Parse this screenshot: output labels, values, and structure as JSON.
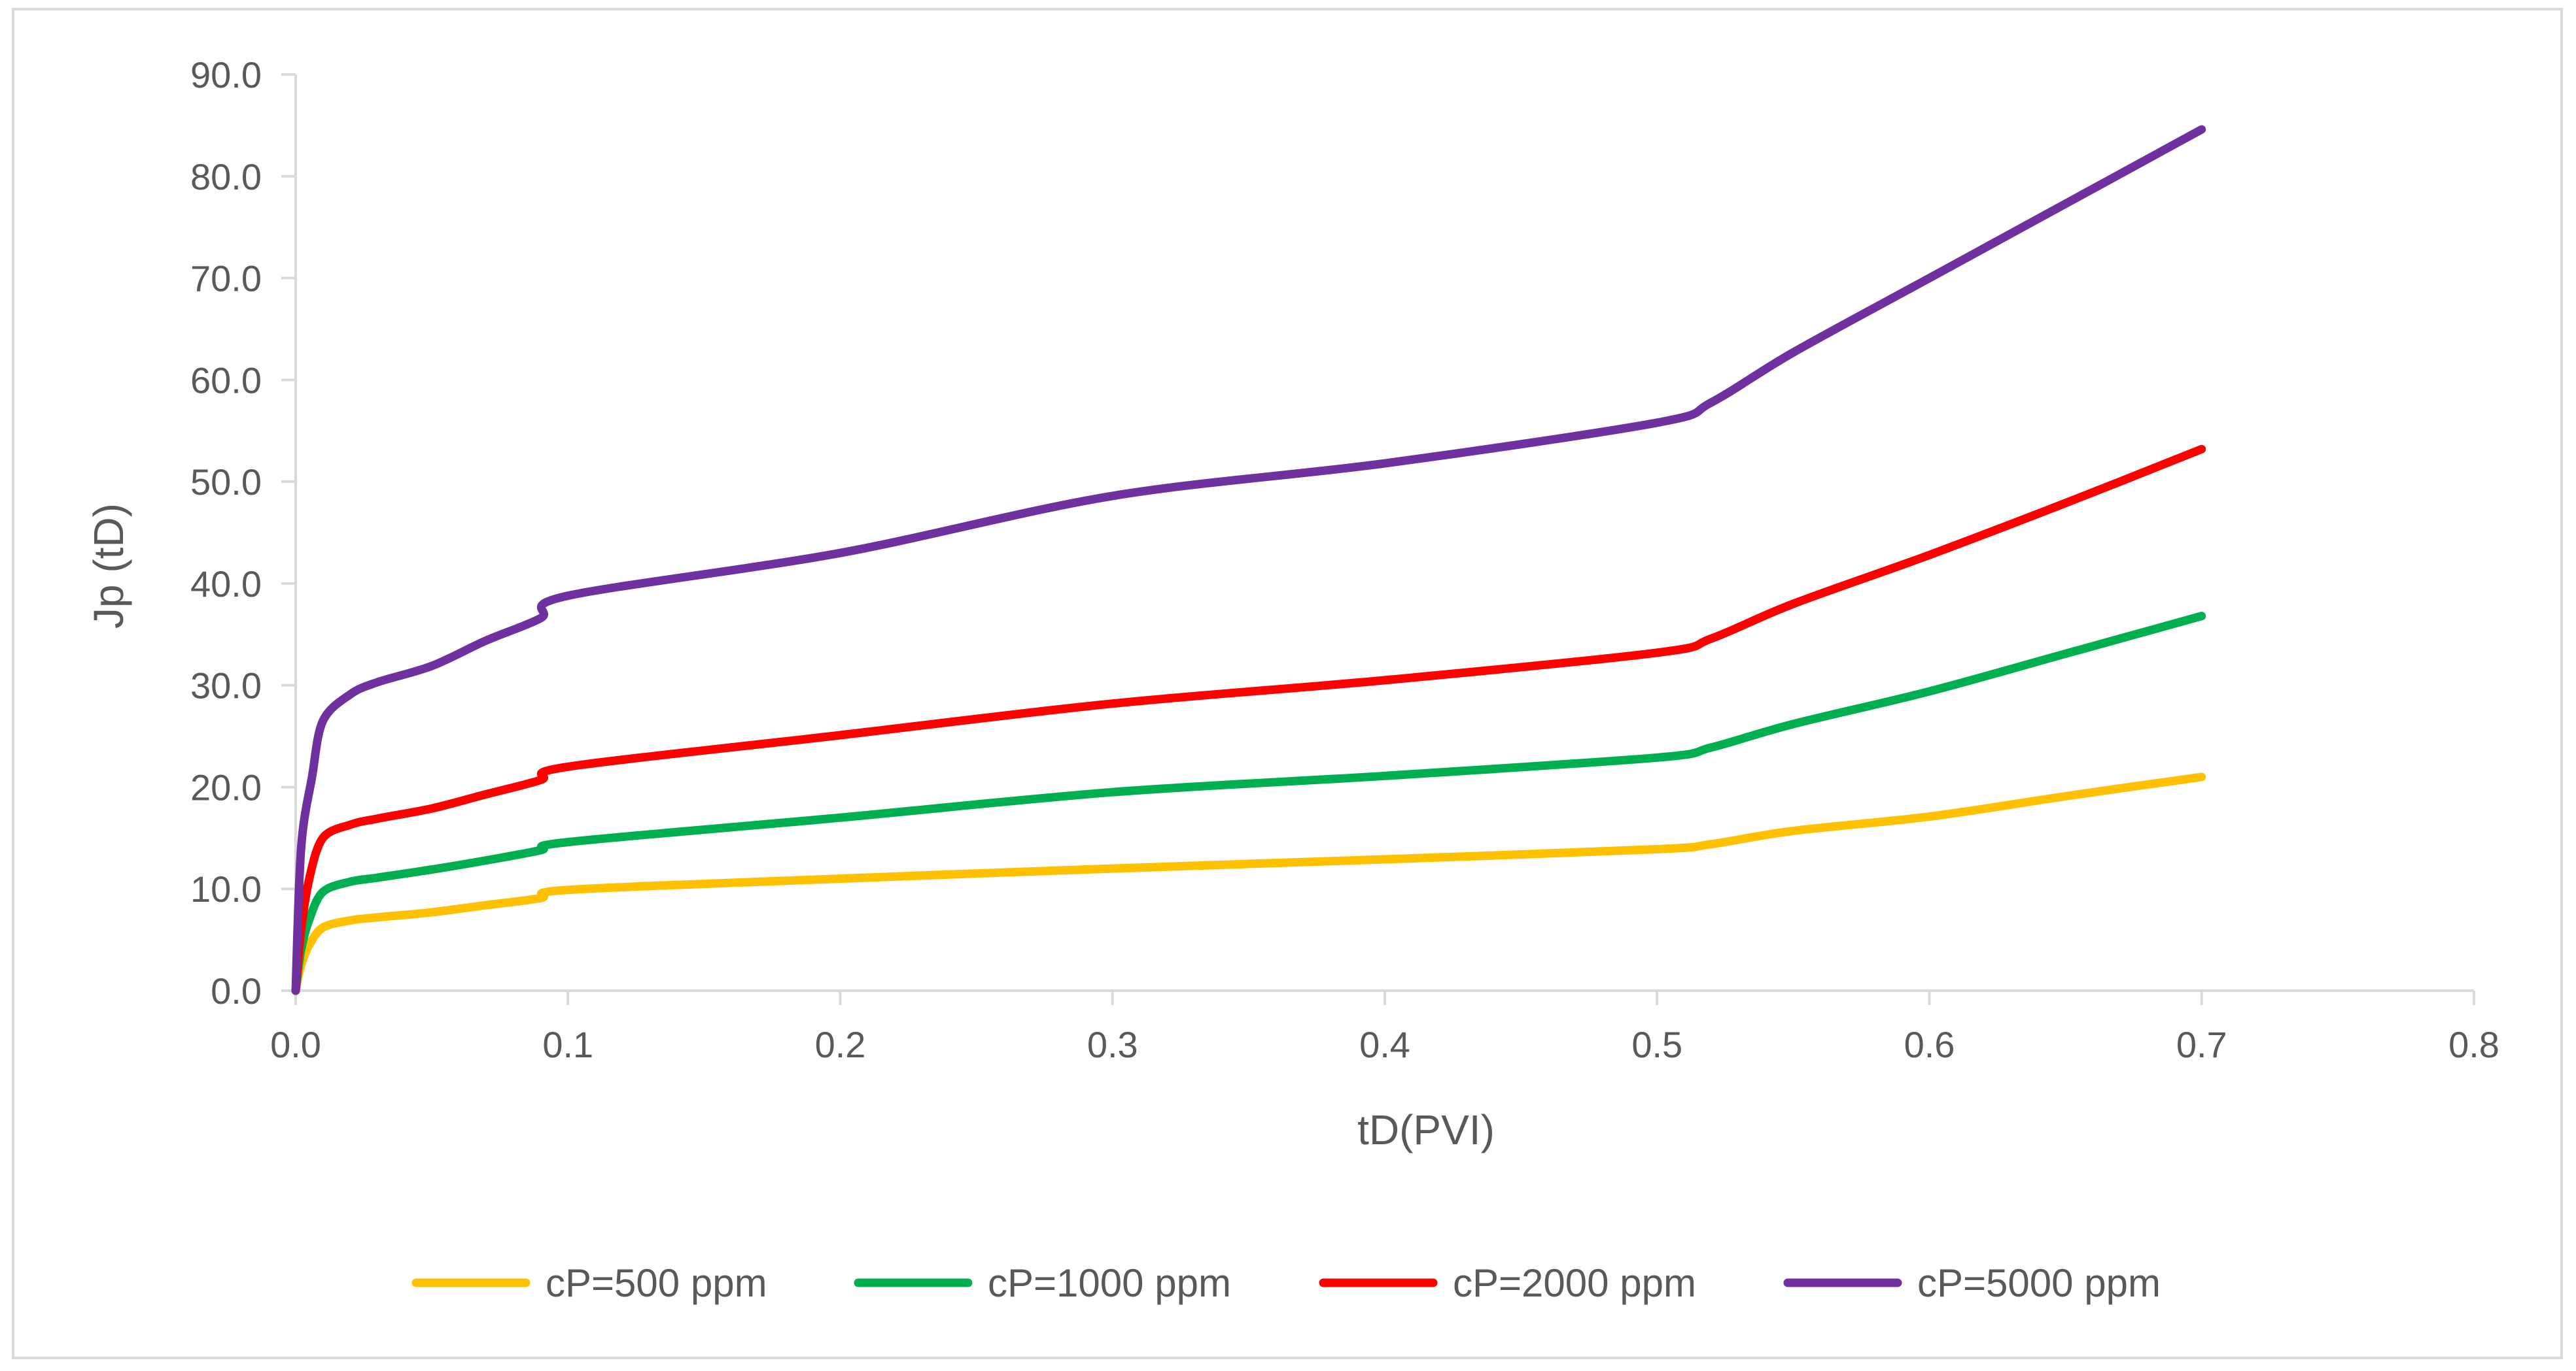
{
  "chart_data": {
    "type": "line",
    "title": "",
    "xlabel": "tD(PVI)",
    "ylabel": "Jp (tD)",
    "xlim": [
      0,
      0.8
    ],
    "ylim": [
      0,
      90
    ],
    "x_ticks": [
      "0.0",
      "0.1",
      "0.2",
      "0.3",
      "0.4",
      "0.5",
      "0.6",
      "0.7",
      "0.8"
    ],
    "y_ticks": [
      "0.0",
      "10.0",
      "20.0",
      "30.0",
      "40.0",
      "50.0",
      "60.0",
      "70.0",
      "80.0",
      "90.0"
    ],
    "grid": false,
    "legend_position": "bottom",
    "series": [
      {
        "name": "cP=500 ppm",
        "color": "#FFC000",
        "points": [
          [
            0,
            0
          ],
          [
            0.002,
            2.5
          ],
          [
            0.005,
            4.5
          ],
          [
            0.01,
            6.2
          ],
          [
            0.02,
            6.9
          ],
          [
            0.03,
            7.2
          ],
          [
            0.05,
            7.7
          ],
          [
            0.07,
            8.4
          ],
          [
            0.09,
            9.1
          ],
          [
            0.1,
            9.9
          ],
          [
            0.2,
            11.0
          ],
          [
            0.3,
            12.0
          ],
          [
            0.4,
            12.9
          ],
          [
            0.5,
            13.9
          ],
          [
            0.52,
            14.4
          ],
          [
            0.55,
            15.7
          ],
          [
            0.6,
            17.1
          ],
          [
            0.65,
            19.1
          ],
          [
            0.7,
            21.0
          ]
        ]
      },
      {
        "name": "cP=1000 ppm",
        "color": "#00B050",
        "points": [
          [
            0,
            0
          ],
          [
            0.002,
            4.0
          ],
          [
            0.005,
            7.0
          ],
          [
            0.01,
            9.7
          ],
          [
            0.02,
            10.7
          ],
          [
            0.03,
            11.1
          ],
          [
            0.05,
            11.9
          ],
          [
            0.07,
            12.8
          ],
          [
            0.09,
            13.8
          ],
          [
            0.1,
            14.6
          ],
          [
            0.2,
            17.0
          ],
          [
            0.3,
            19.5
          ],
          [
            0.4,
            21.1
          ],
          [
            0.5,
            22.9
          ],
          [
            0.52,
            23.9
          ],
          [
            0.55,
            26.2
          ],
          [
            0.6,
            29.4
          ],
          [
            0.65,
            33.1
          ],
          [
            0.7,
            36.8
          ]
        ]
      },
      {
        "name": "cP=2000 ppm",
        "color": "#FF0000",
        "points": [
          [
            0,
            0
          ],
          [
            0.002,
            6.0
          ],
          [
            0.005,
            11.0
          ],
          [
            0.01,
            15.0
          ],
          [
            0.02,
            16.3
          ],
          [
            0.03,
            16.9
          ],
          [
            0.05,
            17.9
          ],
          [
            0.07,
            19.3
          ],
          [
            0.09,
            20.7
          ],
          [
            0.1,
            22.0
          ],
          [
            0.2,
            25.1
          ],
          [
            0.3,
            28.2
          ],
          [
            0.4,
            30.5
          ],
          [
            0.5,
            33.2
          ],
          [
            0.52,
            34.6
          ],
          [
            0.55,
            38.0
          ],
          [
            0.6,
            42.8
          ],
          [
            0.65,
            47.9
          ],
          [
            0.7,
            53.2
          ]
        ]
      },
      {
        "name": "cP=5000 ppm",
        "color": "#7030A0",
        "points": [
          [
            0,
            0
          ],
          [
            0.002,
            14.0
          ],
          [
            0.006,
            21.0
          ],
          [
            0.01,
            26.5
          ],
          [
            0.02,
            29.1
          ],
          [
            0.03,
            30.3
          ],
          [
            0.05,
            31.9
          ],
          [
            0.07,
            34.4
          ],
          [
            0.09,
            36.6
          ],
          [
            0.1,
            38.8
          ],
          [
            0.2,
            43.0
          ],
          [
            0.3,
            48.6
          ],
          [
            0.4,
            51.8
          ],
          [
            0.5,
            55.8
          ],
          [
            0.52,
            57.8
          ],
          [
            0.55,
            62.7
          ],
          [
            0.6,
            70.0
          ],
          [
            0.65,
            77.3
          ],
          [
            0.7,
            84.6
          ]
        ]
      }
    ]
  }
}
